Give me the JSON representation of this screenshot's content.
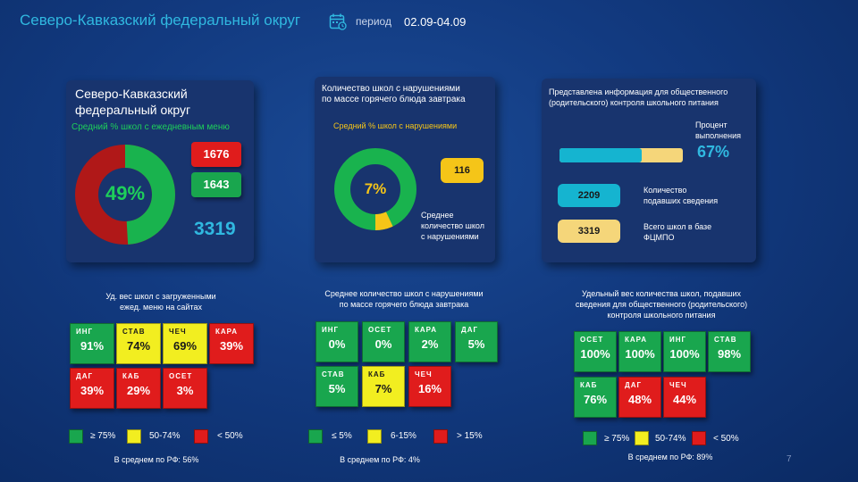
{
  "header": {
    "title": "Северо-Кавказский федеральный округ",
    "period_label": "период",
    "period_value": "02.09-04.09",
    "calendar_icon": "calendar-icon"
  },
  "panel1": {
    "title_line1": "Северо-Кавказский",
    "title_line2": "федеральный округ",
    "subtitle": "Средний % школ с ежедневным меню",
    "percent": "49%",
    "percent_value": 49,
    "red_value": "1676",
    "green_value": "1643",
    "total": "3319"
  },
  "panel2": {
    "title_line1": "Количество школ с нарушениями",
    "title_line2": "по массе горячего блюда завтрака",
    "subtitle": "Средний % школ с нарушениями",
    "percent": "7%",
    "percent_value": 7,
    "count": "116",
    "caption_line1": "Среднее",
    "caption_line2": "количество школ",
    "caption_line3": "с нарушениями"
  },
  "panel3": {
    "title_line1": "Представлена информация для общественного",
    "title_line2": "(родительского) контроля школьного питания",
    "percent_label_line1": "Процент",
    "percent_label_line2": "выполнения",
    "percent": "67%",
    "percent_value": 67,
    "submitted": "2209",
    "submitted_label_line1": "Количество",
    "submitted_label_line2": "подавших сведения",
    "total": "3319",
    "total_label_line1": "Всего школ в базе",
    "total_label_line2": "ФЦМПО"
  },
  "section1": {
    "title_line1": "Уд. вес школ с загруженными",
    "title_line2": "ежед. меню на сайтах",
    "tiles": [
      {
        "name": "ИНГ",
        "value": "91%",
        "color": "green"
      },
      {
        "name": "СТАВ",
        "value": "74%",
        "color": "yellow"
      },
      {
        "name": "ЧЕЧ",
        "value": "69%",
        "color": "yellow"
      },
      {
        "name": "КАРА",
        "value": "39%",
        "color": "red"
      },
      {
        "name": "ДАГ",
        "value": "39%",
        "color": "red"
      },
      {
        "name": "КАБ",
        "value": "29%",
        "color": "red"
      },
      {
        "name": "ОСЕТ",
        "value": "3%",
        "color": "red"
      }
    ],
    "legend": [
      "≥ 75%",
      "50-74%",
      "< 50%"
    ],
    "footer": "В среднем по РФ: 56%"
  },
  "section2": {
    "title_line1": "Среднее количество школ с нарушениями",
    "title_line2": "по массе горячего блюда завтрака",
    "tiles": [
      {
        "name": "ИНГ",
        "value": "0%",
        "color": "green"
      },
      {
        "name": "ОСЕТ",
        "value": "0%",
        "color": "green"
      },
      {
        "name": "КАРА",
        "value": "2%",
        "color": "green"
      },
      {
        "name": "ДАГ",
        "value": "5%",
        "color": "green"
      },
      {
        "name": "СТАВ",
        "value": "5%",
        "color": "green"
      },
      {
        "name": "КАБ",
        "value": "7%",
        "color": "yellow"
      },
      {
        "name": "ЧЕЧ",
        "value": "16%",
        "color": "red"
      }
    ],
    "legend": [
      "≤ 5%",
      "6-15%",
      "> 15%"
    ],
    "footer": "В среднем по РФ: 4%"
  },
  "section3": {
    "title_line1": "Удельный вес количества школ, подавших",
    "title_line2": "сведения для общественного (родительского)",
    "title_line3": "контроля школьного питания",
    "tiles": [
      {
        "name": "ОСЕТ",
        "value": "100%",
        "color": "green"
      },
      {
        "name": "КАРА",
        "value": "100%",
        "color": "green"
      },
      {
        "name": "ИНГ",
        "value": "100%",
        "color": "green"
      },
      {
        "name": "СТАВ",
        "value": "98%",
        "color": "green"
      },
      {
        "name": "КАБ",
        "value": "76%",
        "color": "green"
      },
      {
        "name": "ДАГ",
        "value": "48%",
        "color": "red"
      },
      {
        "name": "ЧЕЧ",
        "value": "44%",
        "color": "red"
      }
    ],
    "legend": [
      "≥ 75%",
      "50-74%",
      "< 50%"
    ],
    "footer": "В среднем по РФ: 89%"
  },
  "page_number": "7",
  "colors": {
    "green": "#19a64e",
    "yellow": "#f2ee20",
    "red": "#e01c1c",
    "accent": "#30b8e0",
    "panel": "#18346e"
  }
}
